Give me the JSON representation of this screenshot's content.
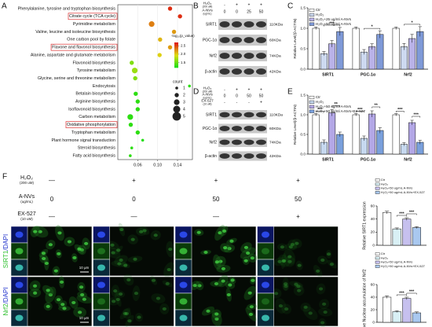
{
  "panel_labels": [
    "A",
    "B",
    "C",
    "D",
    "E",
    "F"
  ],
  "chart_data": [
    {
      "type": "dot",
      "categories": [
        "Phenylalanine, tyrosine and tryptophan biosynthesis",
        "Citrate cycle (TCA cycle)",
        "Pyrimidine metabolism",
        "Valine, leucine and isoleucine biosynthesis",
        "One carbon pool by folate",
        "Flavone and flavonol biosynthesis",
        "Alanine, aspartate and glutamate metabolism",
        "Flavonoid biosynthesis",
        "Tyrosine metabolism",
        "Glycine, serine and threonine metabolism",
        "Endocytosis",
        "Betalain biosynthesis",
        "Arginine biosynthesis",
        "Isoflavonoid biosynthesis",
        "Carbon metabolism",
        "Oxidative phosphorylation",
        "Tryptophan metabolism",
        "Plant hormone signal transduction",
        "Steroid biosynthesis",
        "Fatty acid biosynthesis"
      ],
      "values": [
        0.125,
        0.145,
        0.088,
        0.133,
        0.105,
        0.125,
        0.104,
        0.048,
        0.054,
        0.055,
        0.164,
        0.056,
        0.06,
        0.06,
        0.045,
        0.046,
        0.06,
        0.07,
        0.048,
        0.045
      ],
      "count": [
        2,
        2,
        3,
        2,
        2,
        2,
        2,
        2,
        3,
        2,
        1,
        2,
        2,
        2,
        3,
        2,
        2,
        1,
        1,
        1
      ],
      "neg_log10_p": [
        2.6,
        2.6,
        2.3,
        2.2,
        2.1,
        2.2,
        2.0,
        1.6,
        1.7,
        1.6,
        1.3,
        1.3,
        1.3,
        1.3,
        1.3,
        1.3,
        1.3,
        1.25,
        1.3,
        1.3
      ],
      "xlim": [
        0.02,
        0.17
      ],
      "xticks": [
        0.06,
        {
          "value": 0.1,
          "label": "0.10"
        },
        0.14
      ],
      "color_title": "-log₁₀(p_value)",
      "clim": [
        1.2,
        2.7
      ],
      "cticks": [
        {
          "value": 1.5,
          "label": "1.5"
        },
        {
          "value": 2,
          "label": "2.0"
        },
        {
          "value": 2.5,
          "label": "2.5"
        }
      ],
      "size_title": "count",
      "size_ticks": [
        1,
        2,
        3,
        4,
        5
      ],
      "highlight": [
        1,
        5,
        15
      ]
    },
    {
      "type": "bar",
      "categories": [
        "SIRT1",
        "PGC-1α",
        "Nrf2"
      ],
      "ylabel": "Relative Level(/β-ACTIN)",
      "ylim": [
        0,
        1.5
      ],
      "yticks": [
        {
          "value": 0,
          "label": "0.0"
        },
        0.5,
        {
          "value": 1,
          "label": "1.0"
        },
        1.5
      ],
      "series": [
        {
          "name": "Ctr",
          "color": "#ffffff",
          "values": [
            1.0,
            1.0,
            1.0
          ],
          "errors": [
            0.03,
            0.03,
            0.03
          ]
        },
        {
          "name": "H₂O₂",
          "color": "#cdd9f0",
          "values": [
            0.38,
            0.42,
            0.55
          ],
          "errors": [
            0.05,
            0.06,
            0.08
          ]
        },
        {
          "name": "H₂O₂+25 ug/ml A-NVs",
          "color": "#b9b2e8",
          "values": [
            0.62,
            0.55,
            0.75
          ],
          "errors": [
            0.08,
            0.07,
            0.1
          ]
        },
        {
          "name": "H₂O₂+50 ug/ml A-NVs",
          "color": "#7f9ad8",
          "values": [
            0.92,
            0.85,
            0.92
          ],
          "errors": [
            0.1,
            0.09,
            0.12
          ]
        }
      ],
      "annotations": [
        {
          "category": 0,
          "series": [
            1,
            3
          ],
          "text": "***"
        },
        {
          "category": 1,
          "series": [
            1,
            3
          ],
          "text": "*"
        },
        {
          "category": 2,
          "series": [
            1,
            3
          ],
          "text": "*"
        }
      ]
    },
    {
      "type": "bar",
      "categories": [
        "SIRT1",
        "PGC-1α",
        "Nrf2"
      ],
      "ylabel": "Relative Level(/β-ACTIN)",
      "ylim": [
        0,
        1.5
      ],
      "yticks": [
        {
          "value": 0,
          "label": "0.0"
        },
        0.5,
        {
          "value": 1,
          "label": "1.0"
        },
        1.5
      ],
      "series": [
        {
          "name": "Ctr",
          "color": "#ffffff",
          "values": [
            1.0,
            1.0,
            1.0
          ],
          "errors": [
            0.03,
            0.03,
            0.03
          ]
        },
        {
          "name": "H₂O₂",
          "color": "#c6d8ef",
          "values": [
            0.3,
            0.4,
            0.25
          ],
          "errors": [
            0.06,
            0.06,
            0.04
          ]
        },
        {
          "name": "H₂O₂+50 ug/ml A-NVs",
          "color": "#b3a7e6",
          "values": [
            1.05,
            1.02,
            0.8
          ],
          "errors": [
            0.08,
            0.08,
            0.06
          ]
        },
        {
          "name": "H₂O₂+50 ug/ml A-NVs+EX-527",
          "color": "#7aa0dc",
          "values": [
            0.5,
            0.6,
            0.3
          ],
          "errors": [
            0.06,
            0.07,
            0.05
          ]
        }
      ],
      "annotations": [
        {
          "category": 0,
          "series": [
            0,
            1
          ],
          "text": "***"
        },
        {
          "category": 0,
          "series": [
            2,
            3
          ],
          "text": "**"
        },
        {
          "category": 1,
          "series": [
            0,
            1
          ],
          "text": "***"
        },
        {
          "category": 1,
          "series": [
            2,
            3
          ],
          "text": "**"
        },
        {
          "category": 2,
          "series": [
            0,
            1
          ],
          "text": "***"
        },
        {
          "category": 2,
          "series": [
            2,
            3
          ],
          "text": "***"
        }
      ]
    },
    {
      "type": "bar",
      "categories": [
        null
      ],
      "ylabel": "Relative SIRT1 expression",
      "ylim": [
        0,
        60
      ],
      "yticks": [
        0,
        20,
        40,
        60
      ],
      "series": [
        {
          "name": "Ctr",
          "color": "#ffffff",
          "values": [
            50
          ],
          "errors": [
            2
          ]
        },
        {
          "name": "H₂O₂",
          "color": "#d9f0f5",
          "values": [
            25
          ],
          "errors": [
            1.5
          ]
        },
        {
          "name": "H₂O₂+50 ug/mL A-NVs",
          "color": "#c6c0ee",
          "values": [
            40
          ],
          "errors": [
            2
          ]
        },
        {
          "name": "H₂O₂+50 ug/mL A-NVs+EX-527",
          "color": "#a9c8ef",
          "values": [
            27
          ],
          "errors": [
            1.5
          ]
        }
      ],
      "annotations": [
        {
          "category": 0,
          "series": [
            1,
            2
          ],
          "text": "***"
        },
        {
          "category": 0,
          "series": [
            2,
            3
          ],
          "text": "***"
        }
      ]
    },
    {
      "type": "bar",
      "categories": [
        null
      ],
      "ylabel": "Relative Nuclear accumulation of Nrf2",
      "ylim": [
        0,
        60
      ],
      "yticks": [
        0,
        20,
        40,
        60
      ],
      "series": [
        {
          "name": "Ctr",
          "color": "#ffffff",
          "values": [
            40
          ],
          "errors": [
            2
          ]
        },
        {
          "name": "H₂O₂",
          "color": "#d9f0f5",
          "values": [
            17
          ],
          "errors": [
            1.5
          ]
        },
        {
          "name": "H₂O₂+50 ug/mL A-NVs",
          "color": "#c6c0ee",
          "values": [
            38
          ],
          "errors": [
            2
          ]
        },
        {
          "name": "H₂O₂+50 ug/mL A-NVs+EX-527",
          "color": "#a9c8ef",
          "values": [
            15
          ],
          "errors": [
            1.5
          ]
        }
      ],
      "annotations": [
        {
          "category": 0,
          "series": [
            1,
            2
          ],
          "text": "***"
        },
        {
          "category": 0,
          "series": [
            2,
            3
          ],
          "text": "***"
        }
      ]
    }
  ],
  "blots": [
    {
      "conditions": [
        {
          "name": "H₂O₂",
          "unit": "(200 uM)",
          "levels": [
            "-",
            "+",
            "+",
            "+"
          ]
        },
        {
          "name": "A-NVs",
          "unit": "(ug/mL)",
          "levels": [
            "0",
            "0",
            "25",
            "50"
          ]
        }
      ],
      "rows": [
        {
          "protein": "SIRT1",
          "size": "110KDa"
        },
        {
          "protein": "PGC-1α",
          "size": "60KDa"
        },
        {
          "protein": "Nrf2",
          "size": "74KDa"
        },
        {
          "protein": "β-actin",
          "size": "42KDa"
        }
      ]
    },
    {
      "conditions": [
        {
          "name": "H₂O₂",
          "unit": "(200 uM)",
          "levels": [
            "-",
            "+",
            "+",
            "+"
          ]
        },
        {
          "name": "A-NVs",
          "unit": "(ug/mL)",
          "levels": [
            "0",
            "0",
            "50",
            "50"
          ]
        },
        {
          "name": "EX-527",
          "unit": "(10 uM)",
          "levels": [
            "-",
            "-",
            "-",
            "+"
          ]
        }
      ],
      "rows": [
        {
          "protein": "SIRT1",
          "size": "110KDa"
        },
        {
          "protein": "PGC-1α",
          "size": "60KDa"
        },
        {
          "protein": "Nrf2",
          "size": "74KDa"
        },
        {
          "protein": "β-actin",
          "size": "42KDa"
        }
      ]
    }
  ],
  "microscopy": {
    "conditions": [
      {
        "name": "H₂O₂",
        "unit": "(200 uM)",
        "levels": [
          "—",
          "+",
          "+",
          "+"
        ]
      },
      {
        "name": "A-NVs",
        "unit": "(ug/mL)",
        "levels": [
          "0",
          "0",
          "50",
          "50"
        ]
      },
      {
        "name": "EX-527",
        "unit": "(10 uM)",
        "levels": [
          "—",
          "—",
          "—",
          "+"
        ]
      }
    ],
    "rows": [
      {
        "stain": "SIRT1",
        "counter": "/DAPI"
      },
      {
        "stain": "Nrf2",
        "counter": "/DAPI"
      }
    ],
    "scale_bar": "10 μm"
  }
}
